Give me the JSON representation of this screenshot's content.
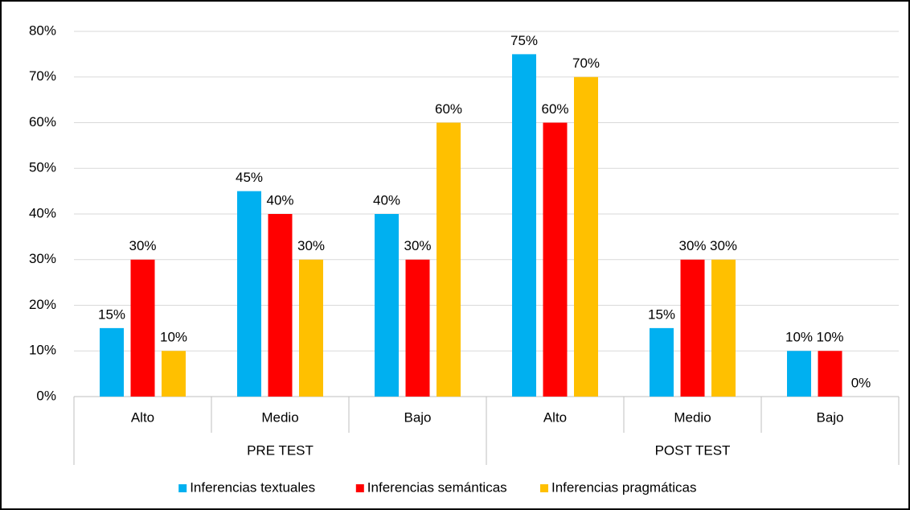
{
  "chart_data": {
    "type": "bar",
    "categories": [
      "Alto",
      "Medio",
      "Bajo",
      "Alto",
      "Medio",
      "Bajo"
    ],
    "groups": [
      "PRE TEST",
      "POST TEST"
    ],
    "series": [
      {
        "name": "Inferencias textuales",
        "color": "#00b0f0",
        "values": [
          15,
          45,
          40,
          75,
          15,
          10
        ],
        "value_labels": [
          "15%",
          "45%",
          "40%",
          "75%",
          "15%",
          "10%"
        ]
      },
      {
        "name": "Inferencias semánticas",
        "color": "#ff0000",
        "values": [
          30,
          40,
          30,
          60,
          30,
          10
        ],
        "value_labels": [
          "30%",
          "40%",
          "30%",
          "60%",
          "30%",
          "10%"
        ]
      },
      {
        "name": "Inferencias pragmáticas",
        "color": "#ffc000",
        "values": [
          10,
          30,
          60,
          70,
          30,
          0
        ],
        "value_labels": [
          "10%",
          "30%",
          "60%",
          "70%",
          "30%",
          "0%"
        ]
      }
    ],
    "ylim": [
      0,
      80
    ],
    "yticks": [
      {
        "value": 0,
        "label": "0%"
      },
      {
        "value": 10,
        "label": "10%"
      },
      {
        "value": 20,
        "label": "20%"
      },
      {
        "value": 30,
        "label": "30%"
      },
      {
        "value": 40,
        "label": "40%"
      },
      {
        "value": 50,
        "label": "50%"
      },
      {
        "value": 60,
        "label": "60%"
      },
      {
        "value": 70,
        "label": "70%"
      },
      {
        "value": 80,
        "label": "80%"
      }
    ],
    "grid": true,
    "legend": "bottom"
  }
}
